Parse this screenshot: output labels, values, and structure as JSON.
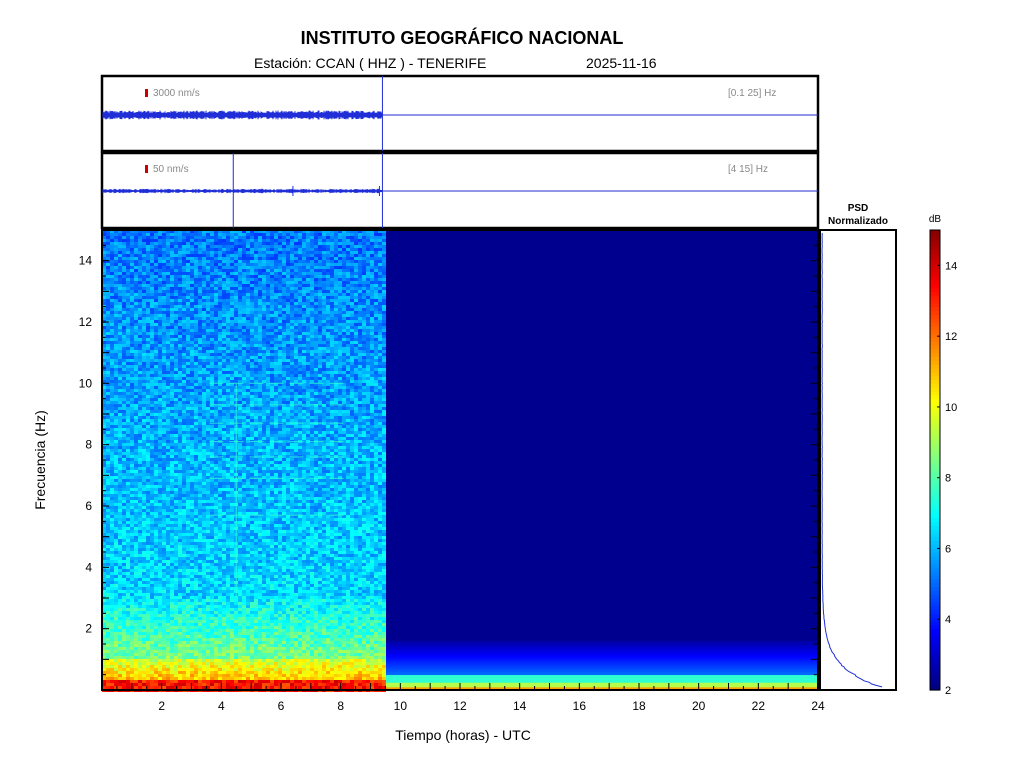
{
  "header": {
    "title": "INSTITUTO GEOGRÁFICO NACIONAL",
    "station_label": "Estación:  CCAN ( HHZ ) - TENERIFE",
    "date": "2025-11-16"
  },
  "chart_data": [
    {
      "type": "line",
      "name": "waveform-broadband",
      "scale_label": "3000 nm/s",
      "band_label": "[0.1 25] Hz",
      "x_unit": "hours UTC",
      "xlim": [
        0,
        24
      ],
      "data_end_hour": 9.4,
      "marker_color": "#cc0000",
      "line_color": "#1f2ed6"
    },
    {
      "type": "line",
      "name": "waveform-highband",
      "scale_label": "50 nm/s",
      "band_label": "[4 15] Hz",
      "x_unit": "hours UTC",
      "xlim": [
        0,
        24
      ],
      "data_end_hour": 9.4,
      "spike_hours": [
        4.4,
        6.4,
        9.3
      ],
      "marker_color": "#cc0000",
      "line_color": "#1f2ed6"
    },
    {
      "type": "heatmap",
      "name": "spectrogram",
      "xlabel": "Tiempo (horas) - UTC",
      "ylabel": "Frecuencia  (Hz)",
      "xlim": [
        0,
        24
      ],
      "ylim": [
        0,
        15
      ],
      "xticks": [
        2,
        4,
        6,
        8,
        10,
        12,
        14,
        16,
        18,
        20,
        22,
        24
      ],
      "yticks": [
        2,
        4,
        6,
        8,
        10,
        12,
        14
      ],
      "data_end_hour": 9.4,
      "spectral_lines_hz": [
        5.7,
        6.9,
        7.6,
        8.1,
        8.7,
        9.3,
        10.0
      ],
      "vertical_artifact_hour": 4.5
    },
    {
      "type": "line",
      "name": "psd-normalized",
      "title": "PSD\nNormalizado",
      "ylim": [
        0,
        15
      ],
      "line_color": "#1f2ed6"
    },
    {
      "type": "heatmap",
      "name": "colorbar",
      "unit_label": "dB",
      "range": [
        2,
        15
      ],
      "ticks": [
        2,
        4,
        6,
        8,
        10,
        12,
        14
      ],
      "colormap": "jet"
    }
  ]
}
